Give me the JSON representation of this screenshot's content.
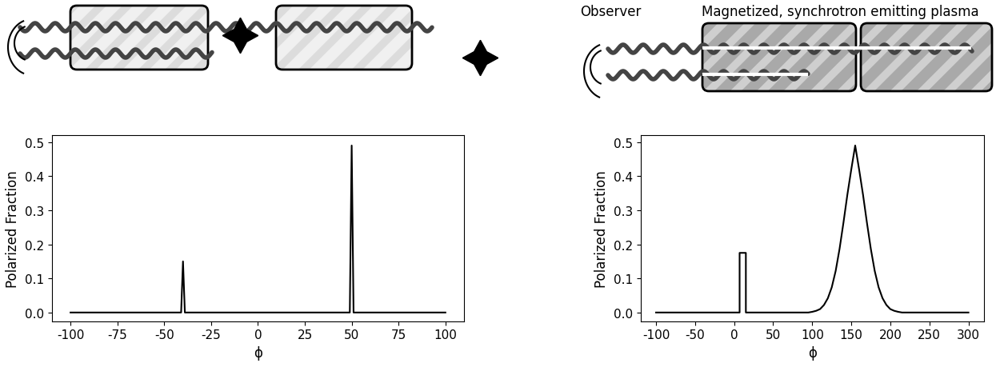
{
  "chart_data": [
    {
      "type": "line",
      "xlabel": "ϕ",
      "ylabel": "Polarized Fraction",
      "color": "#000000",
      "x": [
        -100,
        -41,
        -40,
        -39,
        49,
        50,
        51,
        100
      ],
      "values": [
        0.0,
        0.0,
        0.15,
        0.0,
        0.0,
        0.49,
        0.0,
        0.0
      ],
      "xlim": [
        -110,
        110
      ],
      "ylim": [
        -0.025,
        0.52
      ],
      "xticks": [
        -100,
        -75,
        -50,
        -25,
        0,
        25,
        50,
        75,
        100
      ],
      "yticks": [
        0.0,
        0.1,
        0.2,
        0.3,
        0.4,
        0.5
      ]
    },
    {
      "type": "line",
      "xlabel": "ϕ",
      "ylabel": "Polarized Fraction",
      "color": "#000000",
      "x": [
        -100,
        7,
        7,
        15,
        15,
        95,
        100,
        105,
        110,
        115,
        120,
        125,
        130,
        135,
        140,
        145,
        150,
        155,
        160,
        165,
        170,
        175,
        180,
        185,
        190,
        195,
        200,
        205,
        210,
        215,
        300
      ],
      "values": [
        0.0,
        0.0,
        0.175,
        0.175,
        0.0,
        0.0,
        0.002,
        0.005,
        0.01,
        0.022,
        0.042,
        0.074,
        0.122,
        0.187,
        0.264,
        0.346,
        0.42,
        0.49,
        0.42,
        0.346,
        0.264,
        0.187,
        0.122,
        0.074,
        0.042,
        0.022,
        0.01,
        0.005,
        0.002,
        0.0,
        0.0
      ],
      "xlim": [
        -120,
        320
      ],
      "ylim": [
        -0.025,
        0.52
      ],
      "xticks": [
        -100,
        -50,
        0,
        50,
        100,
        150,
        200,
        250,
        300
      ],
      "yticks": [
        0.0,
        0.1,
        0.2,
        0.3,
        0.4,
        0.5
      ]
    }
  ],
  "diagram": {
    "observer_label": "Observer",
    "plasma_label": "Magnetized, synchrotron emitting plasma"
  }
}
